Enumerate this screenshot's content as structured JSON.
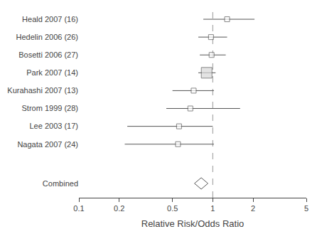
{
  "chart_data": {
    "type": "forest",
    "categories": [
      "Heald 2007 (16)",
      "Hedelin 2006 (26)",
      "Bosetti 2006 (27)",
      "Park 2007 (14)",
      "Kurahashi 2007 (13)",
      "Strom 1999 (28)",
      "Lee 2003 (17)",
      "Nagata 2007 (24)"
    ],
    "values": [
      1.28,
      0.97,
      0.98,
      0.9,
      0.72,
      0.68,
      0.56,
      0.55
    ],
    "ci_lo": [
      0.85,
      0.78,
      0.8,
      0.78,
      0.5,
      0.45,
      0.23,
      0.22
    ],
    "ci_hi": [
      2.05,
      1.28,
      1.25,
      1.05,
      1.02,
      1.6,
      1.0,
      1.02
    ],
    "large": [
      false,
      false,
      false,
      true,
      false,
      false,
      false,
      false
    ],
    "marker": "square",
    "combined": {
      "label": "Combined",
      "value": 0.82,
      "ci_lo": 0.73,
      "ci_hi": 0.92,
      "marker": "diamond"
    },
    "reference_line": 1,
    "log": "x",
    "xlim": [
      0.1,
      5
    ],
    "xticks": [
      0.1,
      0.2,
      0.5,
      1,
      2,
      5
    ],
    "xlabel": "Relative Risk/Odds Ratio",
    "grid": false
  }
}
